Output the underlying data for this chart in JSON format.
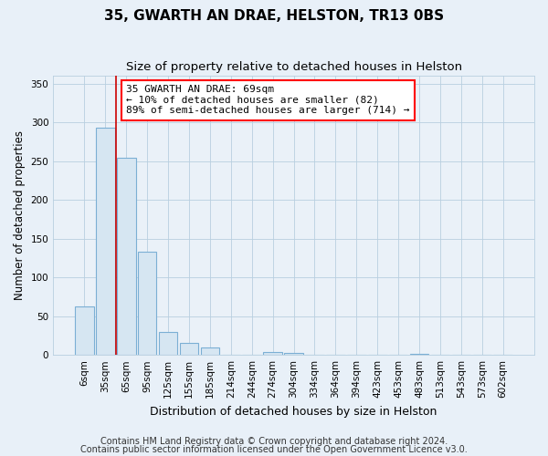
{
  "title": "35, GWARTH AN DRAE, HELSTON, TR13 0BS",
  "subtitle": "Size of property relative to detached houses in Helston",
  "xlabel": "Distribution of detached houses by size in Helston",
  "ylabel": "Number of detached properties",
  "bar_labels": [
    "6sqm",
    "35sqm",
    "65sqm",
    "95sqm",
    "125sqm",
    "155sqm",
    "185sqm",
    "214sqm",
    "244sqm",
    "274sqm",
    "304sqm",
    "334sqm",
    "364sqm",
    "394sqm",
    "423sqm",
    "453sqm",
    "483sqm",
    "513sqm",
    "543sqm",
    "573sqm",
    "602sqm"
  ],
  "bar_values": [
    62,
    293,
    254,
    133,
    30,
    16,
    10,
    0,
    0,
    4,
    3,
    0,
    0,
    0,
    0,
    0,
    1,
    0,
    0,
    0,
    0
  ],
  "bar_fill_color": "#d6e6f2",
  "bar_edge_color": "#7bafd4",
  "red_line_color": "#cc0000",
  "annotation_text": "35 GWARTH AN DRAE: 69sqm\n← 10% of detached houses are smaller (82)\n89% of semi-detached houses are larger (714) →",
  "ylim": [
    0,
    360
  ],
  "yticks": [
    0,
    50,
    100,
    150,
    200,
    250,
    300,
    350
  ],
  "footer_line1": "Contains HM Land Registry data © Crown copyright and database right 2024.",
  "footer_line2": "Contains public sector information licensed under the Open Government Licence v3.0.",
  "outer_bg": "#e8f0f8",
  "plot_bg": "#eaf1f8",
  "grid_color": "#b8cfe0",
  "title_fontsize": 11,
  "subtitle_fontsize": 9.5,
  "footer_fontsize": 7,
  "annot_fontsize": 8,
  "ylabel_fontsize": 8.5,
  "xlabel_fontsize": 9,
  "tick_fontsize": 7.5
}
